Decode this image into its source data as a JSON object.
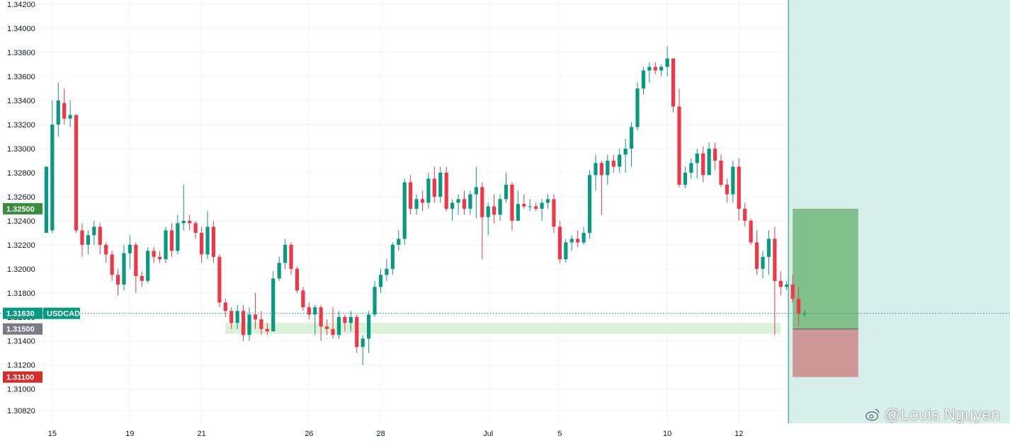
{
  "chart_data": {
    "type": "candlestick",
    "symbol": "USDCAD",
    "ylim": [
      1.3068,
      1.3426
    ],
    "y_ticks": [
      "1.34200",
      "1.34000",
      "1.33800",
      "1.33600",
      "1.33400",
      "1.33200",
      "1.33000",
      "1.32800",
      "1.32600",
      "1.32400",
      "1.32200",
      "1.32000",
      "1.31800",
      "1.31600",
      "1.31400",
      "1.31200",
      "1.31000",
      "1.30820"
    ],
    "x_ticks": [
      {
        "label": "15",
        "index": 1
      },
      {
        "label": "19",
        "index": 14
      },
      {
        "label": "21",
        "index": 26
      },
      {
        "label": "26",
        "index": 44
      },
      {
        "label": "28",
        "index": 56
      },
      {
        "label": "Jul",
        "index": 74
      },
      {
        "label": "5",
        "index": 86
      },
      {
        "label": "10",
        "index": 104
      },
      {
        "label": "12",
        "index": 116
      }
    ],
    "last_price": {
      "label": "1.31630",
      "value": 1.3163,
      "symbol": "USDCAD"
    },
    "levels": [
      {
        "label": "1.32500",
        "value": 1.325,
        "color": "#388e3c"
      },
      {
        "label": "1.31500",
        "value": 1.315,
        "color": "#787b86"
      },
      {
        "label": "1.31100",
        "value": 1.311,
        "color": "#d32f2f"
      }
    ],
    "support_zone": {
      "from_index": 30,
      "to_index": 123,
      "low": 1.3146,
      "high": 1.3155
    },
    "position": {
      "from_index": 125,
      "to_index": 136,
      "entry": 1.315,
      "target": 1.325,
      "stop": 1.311
    },
    "future_region_start_index": 124.3,
    "ohlc": [
      [
        1.323,
        1.3285,
        1.323,
        1.3285
      ],
      [
        1.3232,
        1.334,
        1.323,
        1.332
      ],
      [
        1.332,
        1.3355,
        1.331,
        1.334
      ],
      [
        1.3338,
        1.335,
        1.332,
        1.3325
      ],
      [
        1.3325,
        1.334,
        1.3318,
        1.3328
      ],
      [
        1.3328,
        1.3328,
        1.323,
        1.3232
      ],
      [
        1.3232,
        1.3238,
        1.321,
        1.322
      ],
      [
        1.322,
        1.3232,
        1.3212,
        1.3228
      ],
      [
        1.3228,
        1.324,
        1.322,
        1.3235
      ],
      [
        1.3235,
        1.3238,
        1.3212,
        1.322
      ],
      [
        1.322,
        1.3222,
        1.3205,
        1.3212
      ],
      [
        1.3212,
        1.3215,
        1.319,
        1.3195
      ],
      [
        1.3195,
        1.32,
        1.3178,
        1.3187
      ],
      [
        1.3187,
        1.322,
        1.3182,
        1.3213
      ],
      [
        1.3213,
        1.3228,
        1.32,
        1.322
      ],
      [
        1.322,
        1.3222,
        1.318,
        1.3194
      ],
      [
        1.3194,
        1.3198,
        1.3185,
        1.319
      ],
      [
        1.319,
        1.3218,
        1.3188,
        1.3215
      ],
      [
        1.3215,
        1.3218,
        1.3205,
        1.321
      ],
      [
        1.321,
        1.3215,
        1.3205,
        1.3208
      ],
      [
        1.3208,
        1.3235,
        1.3205,
        1.3232
      ],
      [
        1.3232,
        1.3238,
        1.321,
        1.3215
      ],
      [
        1.3215,
        1.3245,
        1.3212,
        1.3238
      ],
      [
        1.3238,
        1.327,
        1.3232,
        1.324
      ],
      [
        1.324,
        1.3245,
        1.3232,
        1.3238
      ],
      [
        1.3238,
        1.324,
        1.3225,
        1.323
      ],
      [
        1.323,
        1.3235,
        1.3205,
        1.3212
      ],
      [
        1.3212,
        1.3248,
        1.3208,
        1.3235
      ],
      [
        1.3235,
        1.324,
        1.3205,
        1.321
      ],
      [
        1.321,
        1.3212,
        1.3168,
        1.3172
      ],
      [
        1.3172,
        1.3175,
        1.316,
        1.3165
      ],
      [
        1.3165,
        1.3168,
        1.315,
        1.3155
      ],
      [
        1.3155,
        1.317,
        1.315,
        1.3165
      ],
      [
        1.3165,
        1.317,
        1.314,
        1.3145
      ],
      [
        1.3145,
        1.3168,
        1.314,
        1.3162
      ],
      [
        1.3162,
        1.318,
        1.315,
        1.3158
      ],
      [
        1.3158,
        1.3165,
        1.3145,
        1.315
      ],
      [
        1.315,
        1.3155,
        1.3145,
        1.3148
      ],
      [
        1.3148,
        1.3198,
        1.3148,
        1.3192
      ],
      [
        1.3192,
        1.321,
        1.319,
        1.3205
      ],
      [
        1.3205,
        1.3225,
        1.32,
        1.322
      ],
      [
        1.322,
        1.3222,
        1.3195,
        1.32
      ],
      [
        1.32,
        1.3202,
        1.318,
        1.3182
      ],
      [
        1.3182,
        1.3185,
        1.3165,
        1.3168
      ],
      [
        1.3168,
        1.3172,
        1.3158,
        1.3162
      ],
      [
        1.3162,
        1.317,
        1.3145,
        1.3168
      ],
      [
        1.3168,
        1.317,
        1.314,
        1.3152
      ],
      [
        1.3152,
        1.3158,
        1.3145,
        1.315
      ],
      [
        1.315,
        1.3168,
        1.3142,
        1.3145
      ],
      [
        1.3145,
        1.3165,
        1.3142,
        1.316
      ],
      [
        1.316,
        1.3162,
        1.3148,
        1.3155
      ],
      [
        1.3155,
        1.3165,
        1.3148,
        1.316
      ],
      [
        1.316,
        1.3162,
        1.313,
        1.3135
      ],
      [
        1.3135,
        1.3145,
        1.312,
        1.3142
      ],
      [
        1.3142,
        1.3165,
        1.313,
        1.3162
      ],
      [
        1.3162,
        1.319,
        1.316,
        1.3185
      ],
      [
        1.3185,
        1.32,
        1.318,
        1.3195
      ],
      [
        1.3195,
        1.3208,
        1.319,
        1.32
      ],
      [
        1.32,
        1.3222,
        1.3195,
        1.322
      ],
      [
        1.322,
        1.3232,
        1.3215,
        1.3225
      ],
      [
        1.3225,
        1.3275,
        1.322,
        1.3272
      ],
      [
        1.3272,
        1.3278,
        1.3245,
        1.325
      ],
      [
        1.325,
        1.3262,
        1.3245,
        1.3258
      ],
      [
        1.3258,
        1.3265,
        1.3248,
        1.3255
      ],
      [
        1.3255,
        1.328,
        1.325,
        1.3275
      ],
      [
        1.3275,
        1.3285,
        1.3255,
        1.326
      ],
      [
        1.326,
        1.3285,
        1.3255,
        1.328
      ],
      [
        1.328,
        1.3285,
        1.3248,
        1.325
      ],
      [
        1.325,
        1.3258,
        1.324,
        1.3255
      ],
      [
        1.3255,
        1.3262,
        1.3245,
        1.3258
      ],
      [
        1.3258,
        1.3265,
        1.3245,
        1.325
      ],
      [
        1.325,
        1.3265,
        1.3245,
        1.3262
      ],
      [
        1.3262,
        1.3285,
        1.3242,
        1.3268
      ],
      [
        1.3268,
        1.3272,
        1.3208,
        1.3243
      ],
      [
        1.3243,
        1.3255,
        1.3228,
        1.3252
      ],
      [
        1.3252,
        1.3262,
        1.3238,
        1.3245
      ],
      [
        1.3245,
        1.3262,
        1.324,
        1.3258
      ],
      [
        1.3258,
        1.328,
        1.3255,
        1.327
      ],
      [
        1.327,
        1.3272,
        1.3232,
        1.324
      ],
      [
        1.324,
        1.3265,
        1.324,
        1.3254
      ],
      [
        1.3254,
        1.3262,
        1.325,
        1.3252
      ],
      [
        1.3252,
        1.3258,
        1.3248,
        1.3252
      ],
      [
        1.3252,
        1.3255,
        1.3248,
        1.325
      ],
      [
        1.325,
        1.3258,
        1.324,
        1.3255
      ],
      [
        1.3255,
        1.3262,
        1.325,
        1.3258
      ],
      [
        1.3258,
        1.3262,
        1.323,
        1.3235
      ],
      [
        1.3235,
        1.324,
        1.3205,
        1.3208
      ],
      [
        1.3208,
        1.3225,
        1.3205,
        1.3222
      ],
      [
        1.3222,
        1.3228,
        1.3215,
        1.3225
      ],
      [
        1.3225,
        1.3232,
        1.3218,
        1.3222
      ],
      [
        1.3222,
        1.3235,
        1.322,
        1.323
      ],
      [
        1.323,
        1.3282,
        1.3225,
        1.3278
      ],
      [
        1.3278,
        1.3295,
        1.3265,
        1.3288
      ],
      [
        1.3288,
        1.329,
        1.3245,
        1.3278
      ],
      [
        1.3278,
        1.3295,
        1.327,
        1.329
      ],
      [
        1.329,
        1.3295,
        1.328,
        1.3285
      ],
      [
        1.3285,
        1.33,
        1.328,
        1.3295
      ],
      [
        1.3295,
        1.3308,
        1.328,
        1.33
      ],
      [
        1.33,
        1.3322,
        1.3285,
        1.3318
      ],
      [
        1.3318,
        1.3355,
        1.3315,
        1.335
      ],
      [
        1.335,
        1.3368,
        1.3345,
        1.3365
      ],
      [
        1.3365,
        1.3372,
        1.3355,
        1.3368
      ],
      [
        1.3368,
        1.3372,
        1.3362,
        1.3365
      ],
      [
        1.3365,
        1.337,
        1.336,
        1.3368
      ],
      [
        1.3368,
        1.3385,
        1.336,
        1.3375
      ],
      [
        1.3375,
        1.3375,
        1.333,
        1.3335
      ],
      [
        1.3335,
        1.335,
        1.3268,
        1.327
      ],
      [
        1.327,
        1.3285,
        1.3267,
        1.328
      ],
      [
        1.328,
        1.3292,
        1.3275,
        1.3288
      ],
      [
        1.3288,
        1.33,
        1.3275,
        1.3296
      ],
      [
        1.3296,
        1.3302,
        1.3272,
        1.3278
      ],
      [
        1.3278,
        1.3305,
        1.3278,
        1.33
      ],
      [
        1.33,
        1.3305,
        1.3282,
        1.329
      ],
      [
        1.329,
        1.3295,
        1.3268,
        1.327
      ],
      [
        1.327,
        1.3275,
        1.3255,
        1.3262
      ],
      [
        1.3262,
        1.329,
        1.3255,
        1.3285
      ],
      [
        1.3285,
        1.3292,
        1.324,
        1.325
      ],
      [
        1.325,
        1.3255,
        1.3235,
        1.324
      ],
      [
        1.324,
        1.3242,
        1.322,
        1.3222
      ],
      [
        1.3222,
        1.3232,
        1.3195,
        1.32
      ],
      [
        1.32,
        1.3215,
        1.3192,
        1.321
      ],
      [
        1.321,
        1.3232,
        1.3195,
        1.3225
      ],
      [
        1.3225,
        1.3235,
        1.3145,
        1.319
      ],
      [
        1.319,
        1.3198,
        1.3178,
        1.3185
      ],
      [
        1.3185,
        1.319,
        1.3182,
        1.3187
      ],
      [
        1.3187,
        1.3195,
        1.3172,
        1.3175
      ],
      [
        1.3175,
        1.3185,
        1.3152,
        1.3163
      ],
      [
        1.3163,
        1.3166,
        1.316,
        1.3163
      ]
    ]
  }
}
